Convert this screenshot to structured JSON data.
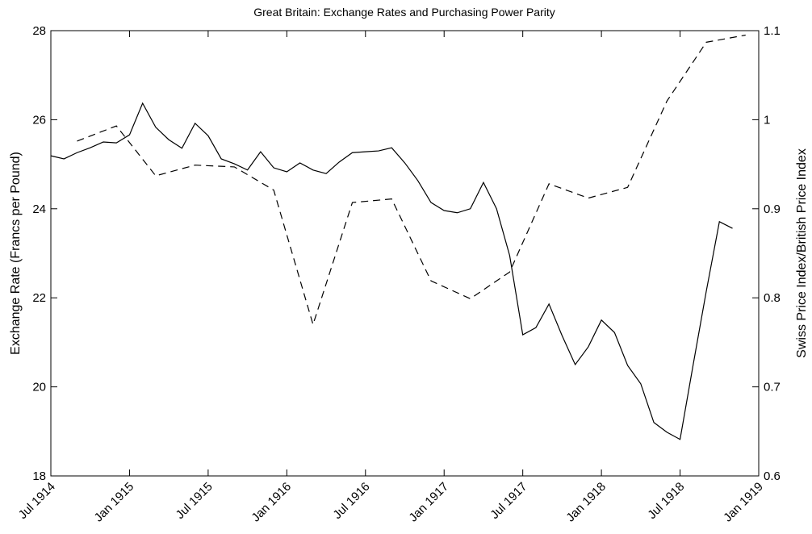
{
  "chart_data": {
    "type": "line",
    "title": "Great Britain: Exchange Rates and Purchasing Power Parity",
    "ylabel": "Exchange Rate (Francs per Pound)",
    "y2label": "Swiss Price Index/British Price Index",
    "xlim": [
      "1914-07",
      "1919-01"
    ],
    "xticks": [
      {
        "value": "1914-07",
        "label": "Jul 1914"
      },
      {
        "value": "1915-01",
        "label": "Jan 1915"
      },
      {
        "value": "1915-07",
        "label": "Jul 1915"
      },
      {
        "value": "1916-01",
        "label": "Jan 1916"
      },
      {
        "value": "1916-07",
        "label": "Jul 1916"
      },
      {
        "value": "1917-01",
        "label": "Jan 1917"
      },
      {
        "value": "1917-07",
        "label": "Jul 1917"
      },
      {
        "value": "1918-01",
        "label": "Jan 1918"
      },
      {
        "value": "1918-07",
        "label": "Jul 1918"
      },
      {
        "value": "1919-01",
        "label": "Jan 1919"
      }
    ],
    "ylim": [
      18,
      28
    ],
    "yticks": [
      18,
      20,
      22,
      24,
      26,
      28
    ],
    "y2lim": [
      0.6,
      1.1
    ],
    "y2ticks": [
      0.6,
      0.7,
      0.8,
      0.9,
      1,
      1.1
    ],
    "series": [
      {
        "color": "#000000",
        "dash": false,
        "x": [
          "1914-07",
          "1914-08",
          "1914-09",
          "1914-10",
          "1914-11",
          "1914-12",
          "1915-01",
          "1915-02",
          "1915-03",
          "1915-04",
          "1915-05",
          "1915-06",
          "1915-07",
          "1915-08",
          "1915-09",
          "1915-10",
          "1915-11",
          "1915-12",
          "1916-01",
          "1916-02",
          "1916-03",
          "1916-04",
          "1916-05",
          "1916-06",
          "1916-07",
          "1916-08",
          "1916-09",
          "1916-10",
          "1916-11",
          "1916-12",
          "1917-01",
          "1917-02",
          "1917-03",
          "1917-04",
          "1917-05",
          "1917-06",
          "1917-07",
          "1917-08",
          "1917-09",
          "1917-10",
          "1917-11",
          "1917-12",
          "1918-01",
          "1918-02",
          "1918-03",
          "1918-04",
          "1918-05",
          "1918-06",
          "1918-07",
          "1918-08",
          "1918-09",
          "1918-10",
          "1918-11"
        ],
        "values": [
          25.19,
          25.12,
          25.26,
          25.37,
          25.5,
          25.48,
          25.66,
          26.37,
          25.83,
          25.55,
          25.36,
          25.92,
          25.64,
          25.12,
          25.01,
          24.87,
          25.28,
          24.92,
          24.83,
          25.03,
          24.87,
          24.79,
          25.05,
          25.26,
          25.28,
          25.3,
          25.37,
          25.03,
          24.63,
          24.14,
          23.96,
          23.91,
          24.0,
          24.59,
          24.0,
          22.95,
          21.17,
          21.33,
          21.86,
          21.15,
          20.5,
          20.9,
          21.5,
          21.22,
          20.48,
          20.07,
          19.2,
          18.98,
          18.82,
          20.5,
          22.15,
          23.71,
          23.56
        ]
      },
      {
        "color": "#000000",
        "dash": true,
        "axis": "y2",
        "x": [
          "1914-09",
          "1914-12",
          "1915-03",
          "1915-06",
          "1915-09",
          "1915-12",
          "1916-03",
          "1916-06",
          "1916-09",
          "1916-12",
          "1917-03",
          "1917-06",
          "1917-09",
          "1917-12",
          "1918-03",
          "1918-06",
          "1918-09",
          "1918-12"
        ],
        "values": [
          0.976,
          0.993,
          0.937,
          0.949,
          0.947,
          0.921,
          0.77,
          0.907,
          0.911,
          0.819,
          0.799,
          0.829,
          0.928,
          0.912,
          0.924,
          1.021,
          1.087,
          1.095
        ]
      }
    ]
  }
}
